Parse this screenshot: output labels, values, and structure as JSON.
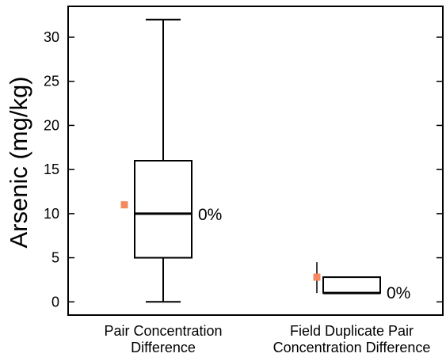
{
  "chart_data": {
    "type": "box",
    "ylabel": "Arsenic (mg/kg)",
    "ylim": [
      -1.5,
      33.5
    ],
    "yticks": [
      0,
      5,
      10,
      15,
      20,
      25,
      30
    ],
    "grid": false,
    "categories": [
      {
        "lines": [
          "Pair Concentration",
          "Difference"
        ]
      },
      {
        "lines": [
          "Field Duplicate Pair",
          "Concentration Difference"
        ]
      }
    ],
    "boxes": [
      {
        "min": 0,
        "q1": 5,
        "median": 10,
        "q3": 16,
        "max": 32,
        "mean": 11,
        "annotation": "0%"
      },
      {
        "min": 1.0,
        "q1": 1.0,
        "median": 1.0,
        "q3": 2.8,
        "max": 4.5,
        "mean": 2.8,
        "annotation": "0%"
      }
    ],
    "mean_marker_color": "#f4895f"
  }
}
